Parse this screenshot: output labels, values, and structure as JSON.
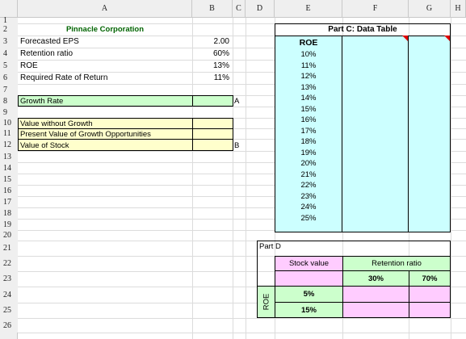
{
  "columns": [
    "A",
    "B",
    "C",
    "D",
    "E",
    "F",
    "G",
    "H"
  ],
  "rows": [
    "1",
    "2",
    "3",
    "4",
    "5",
    "6",
    "7",
    "8",
    "9",
    "10",
    "11",
    "12",
    "13",
    "14",
    "15",
    "16",
    "17",
    "18",
    "19",
    "20",
    "21",
    "22",
    "23",
    "24",
    "25",
    "26"
  ],
  "company": "Pinnacle Corporation",
  "inputs": [
    {
      "label": "Forecasted EPS",
      "value": "2.00"
    },
    {
      "label": "Retention ratio",
      "value": "60%"
    },
    {
      "label": "ROE",
      "value": "13%"
    },
    {
      "label": "Required Rate of Return",
      "value": "11%"
    }
  ],
  "growth_label": "Growth Rate",
  "marker_a": "A",
  "marker_b": "B",
  "outputs": [
    "Value without Growth",
    "Present Value of Growth Opportunities",
    "Value of Stock"
  ],
  "part_c": {
    "title": "Part C: Data Table",
    "header": "ROE",
    "roe_values": [
      "10%",
      "11%",
      "12%",
      "13%",
      "14%",
      "15%",
      "16%",
      "17%",
      "18%",
      "19%",
      "20%",
      "21%",
      "22%",
      "23%",
      "24%",
      "25%"
    ]
  },
  "part_d": {
    "title": "Part D",
    "stock_value": "Stock value",
    "retention_ratio": "Retention ratio",
    "ratio_30": "30%",
    "ratio_70": "70%",
    "roe_label": "ROE",
    "roe_5": "5%",
    "roe_15": "15%"
  },
  "colors": {
    "green": "#ccffcc",
    "yellow": "#ffffcc",
    "pink": "#ffccff",
    "cyan": "#ccffff",
    "company_text": "#006400",
    "comment_marker": "#e00000"
  }
}
